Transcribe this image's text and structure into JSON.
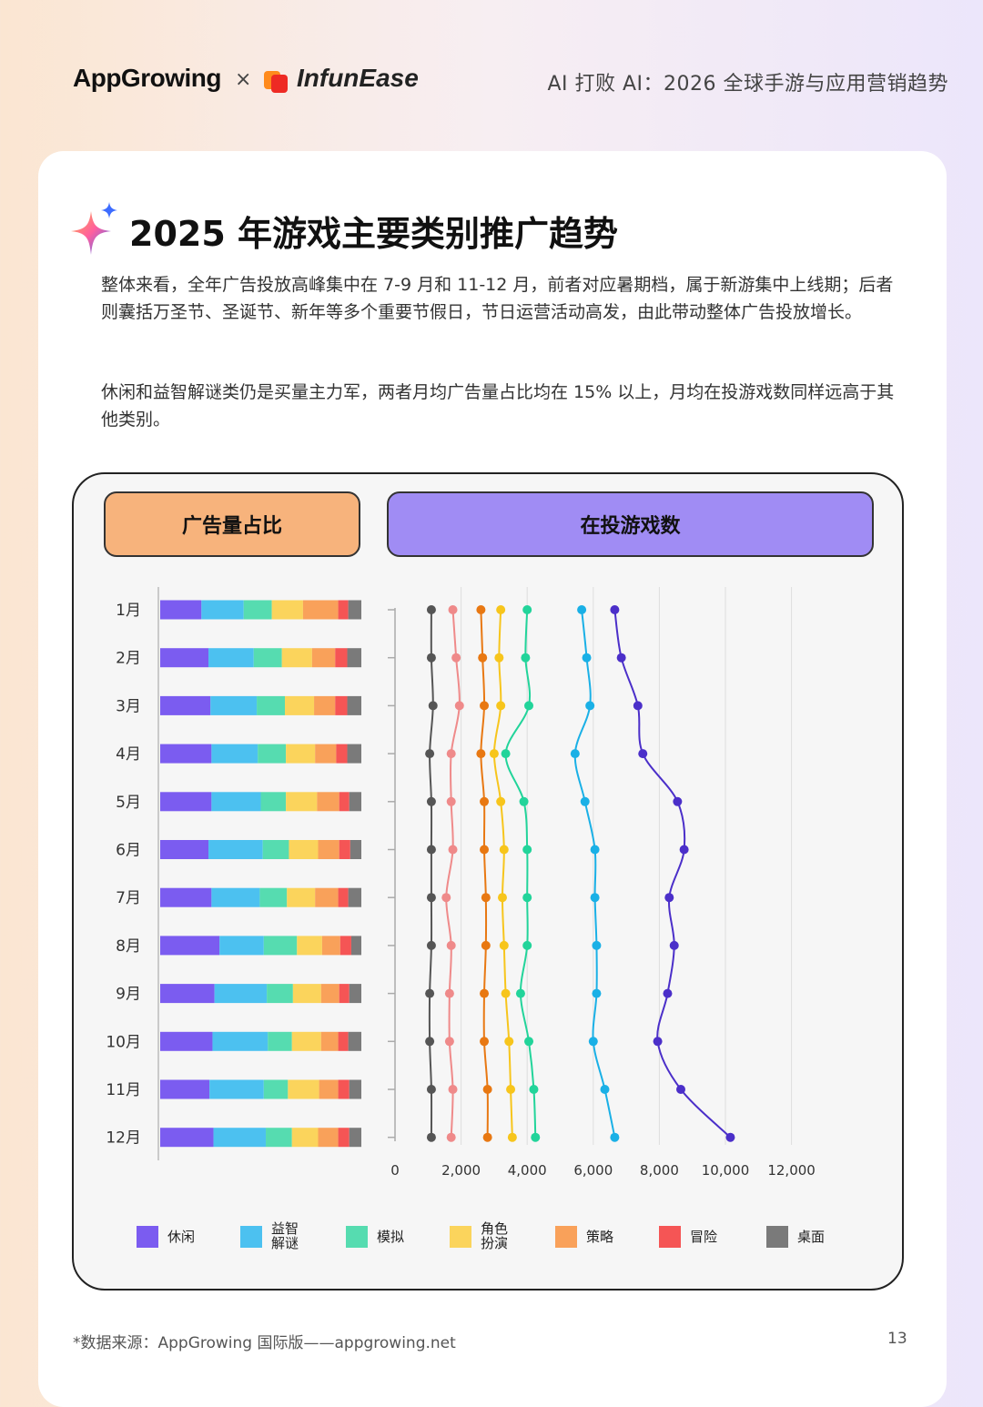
{
  "header": {
    "brand_left": "AppGrowing",
    "separator": "×",
    "brand_right": "InfunEase",
    "title": "AI 打败 AI：2026 全球手游与应用营销趋势"
  },
  "section": {
    "title": "2025 年游戏主要类别推广趋势",
    "paragraph1": "整体来看，全年广告投放高峰集中在 7-9 月和 11-12 月，前者对应暑期档，属于新游集中上线期；后者则囊括万圣节、圣诞节、新年等多个重要节假日，节日运营活动高发，由此带动整体广告投放增长。",
    "paragraph2": "休闲和益智解谜类仍是买量主力军，两者月均广告量占比均在 15% 以上，月均在投游戏数同样远高于其他类别。"
  },
  "chart_headers": {
    "left": "广告量占比",
    "right": "在投游戏数"
  },
  "colors": {
    "休闲": "#7b5cf0",
    "益智解谜": "#4cc1f0",
    "模拟": "#56dcb0",
    "角色扮演": "#fbd45c",
    "策略": "#f9a15a",
    "冒险": "#f55555",
    "桌面": "#7a7a7a",
    "line_休闲": "#4b2fc9",
    "line_益智解谜": "#1ab0e6",
    "line_模拟": "#22d49a",
    "line_角色扮演": "#f7c51c",
    "line_策略": "#e87812",
    "line_冒险": "#ef8a8a",
    "line_桌面": "#555555"
  },
  "chart_data": [
    {
      "type": "bar",
      "stacked": "100%",
      "orientation": "horizontal",
      "title": "广告量占比",
      "categories": [
        "1月",
        "2月",
        "3月",
        "4月",
        "5月",
        "6月",
        "7月",
        "8月",
        "9月",
        "10月",
        "11月",
        "12月"
      ],
      "series": [
        {
          "name": "休闲",
          "values": [
            20.5,
            24.0,
            25.0,
            25.5,
            25.5,
            24.0,
            25.5,
            29.5,
            27.0,
            26.0,
            24.5,
            26.5
          ]
        },
        {
          "name": "益智解谜",
          "values": [
            21.0,
            22.5,
            23.0,
            23.0,
            24.5,
            27.0,
            24.0,
            22.0,
            26.0,
            27.5,
            27.0,
            26.0
          ]
        },
        {
          "name": "模拟",
          "values": [
            14.0,
            14.0,
            14.0,
            14.0,
            12.5,
            13.0,
            13.5,
            16.5,
            13.0,
            12.0,
            12.0,
            13.0
          ]
        },
        {
          "name": "角色扮演",
          "values": [
            15.5,
            15.0,
            14.5,
            14.5,
            15.5,
            14.5,
            14.0,
            12.5,
            14.0,
            14.5,
            15.5,
            13.0
          ]
        },
        {
          "name": "策略",
          "values": [
            17.5,
            11.5,
            10.5,
            10.5,
            11.0,
            10.5,
            11.5,
            9.0,
            9.0,
            8.5,
            9.5,
            10.0
          ]
        },
        {
          "name": "冒险",
          "values": [
            5.0,
            6.0,
            6.0,
            5.5,
            5.0,
            5.5,
            5.0,
            5.5,
            5.0,
            5.0,
            5.5,
            5.5
          ]
        },
        {
          "name": "桌面",
          "values": [
            6.5,
            7.0,
            7.0,
            7.0,
            6.0,
            5.5,
            6.5,
            5.0,
            6.0,
            6.5,
            6.0,
            6.0
          ]
        }
      ],
      "xlim": [
        0,
        100
      ]
    },
    {
      "type": "line",
      "orientation": "vertical",
      "title": "在投游戏数",
      "categories": [
        "1月",
        "2月",
        "3月",
        "4月",
        "5月",
        "6月",
        "7月",
        "8月",
        "9月",
        "10月",
        "11月",
        "12月"
      ],
      "xlim": [
        0,
        12000
      ],
      "xticks": [
        "0",
        "2,000",
        "4,000",
        "6,000",
        "8,000",
        "10,000",
        "12,000"
      ],
      "grid": true,
      "series": [
        {
          "name": "休闲",
          "values": [
            6650,
            6850,
            7350,
            7500,
            8550,
            8750,
            8300,
            8450,
            8250,
            7950,
            8650,
            10150
          ]
        },
        {
          "name": "益智解谜",
          "values": [
            5650,
            5800,
            5900,
            5450,
            5750,
            6050,
            6050,
            6100,
            6100,
            6000,
            6350,
            6650
          ]
        },
        {
          "name": "模拟",
          "values": [
            4000,
            3950,
            4050,
            3350,
            3900,
            4000,
            4000,
            4000,
            3800,
            4050,
            4200,
            4250
          ]
        },
        {
          "name": "角色扮演",
          "values": [
            3200,
            3150,
            3200,
            3000,
            3200,
            3300,
            3250,
            3300,
            3350,
            3450,
            3500,
            3550
          ]
        },
        {
          "name": "策略",
          "values": [
            2600,
            2650,
            2700,
            2600,
            2700,
            2700,
            2750,
            2750,
            2700,
            2700,
            2800,
            2800
          ]
        },
        {
          "name": "冒险",
          "values": [
            1750,
            1850,
            1950,
            1700,
            1700,
            1750,
            1550,
            1700,
            1650,
            1650,
            1750,
            1700
          ]
        },
        {
          "name": "桌面",
          "values": [
            1100,
            1100,
            1150,
            1050,
            1100,
            1100,
            1100,
            1100,
            1050,
            1050,
            1100,
            1100
          ]
        }
      ]
    }
  ],
  "legend": [
    {
      "key": "休闲",
      "label": "休闲"
    },
    {
      "key": "益智解谜",
      "label": "益智 解谜"
    },
    {
      "key": "模拟",
      "label": "模拟"
    },
    {
      "key": "角色扮演",
      "label": "角色 扮演"
    },
    {
      "key": "策略",
      "label": "策略"
    },
    {
      "key": "冒险",
      "label": "冒险"
    },
    {
      "key": "桌面",
      "label": "桌面"
    }
  ],
  "footer": {
    "source": "*数据来源：AppGrowing 国际版——appgrowing.net",
    "page": "13"
  }
}
